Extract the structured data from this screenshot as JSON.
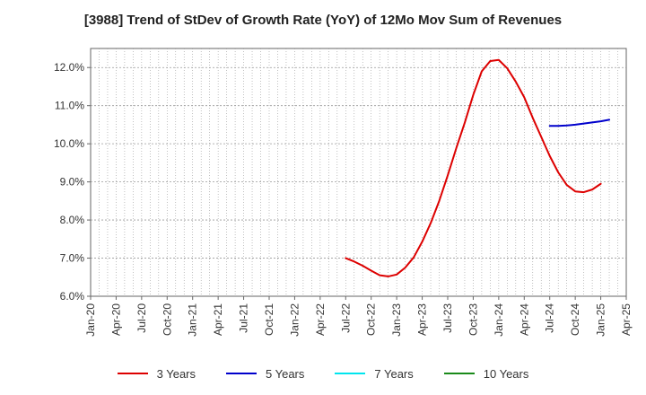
{
  "chart_data": {
    "type": "line",
    "title": "[3988]  Trend of StDev of Growth Rate (YoY) of 12Mo Mov Sum of Revenues",
    "xlabel": "",
    "ylabel": "",
    "ylim": [
      6.0,
      12.5
    ],
    "yticks": [
      6.0,
      7.0,
      8.0,
      9.0,
      10.0,
      11.0,
      12.0
    ],
    "ytick_labels": [
      "6.0%",
      "7.0%",
      "8.0%",
      "9.0%",
      "10.0%",
      "11.0%",
      "12.0%"
    ],
    "x_range_months": [
      0,
      63
    ],
    "xticks": [
      0,
      3,
      6,
      9,
      12,
      15,
      18,
      21,
      24,
      27,
      30,
      33,
      36,
      39,
      42,
      45,
      48,
      51,
      54,
      57,
      60,
      63
    ],
    "xtick_labels": [
      "Jan-20",
      "Apr-20",
      "Jul-20",
      "Oct-20",
      "Jan-21",
      "Apr-21",
      "Jul-21",
      "Oct-21",
      "Jan-22",
      "Apr-22",
      "Jul-22",
      "Oct-22",
      "Jan-23",
      "Apr-23",
      "Jul-23",
      "Oct-23",
      "Jan-24",
      "Apr-24",
      "Jul-24",
      "Oct-24",
      "Jan-25",
      "Apr-25"
    ],
    "grid": true,
    "legend_position": "bottom",
    "series": [
      {
        "name": "3 Years",
        "color": "#dd0000",
        "x": [
          30,
          31,
          32,
          33,
          34,
          35,
          36,
          37,
          38,
          39,
          40,
          41,
          42,
          43,
          44,
          45,
          46,
          47,
          48,
          49,
          50,
          51,
          52,
          53,
          54,
          55,
          56,
          57,
          58,
          59,
          60
        ],
        "values": [
          7.0,
          6.91,
          6.8,
          6.67,
          6.55,
          6.52,
          6.57,
          6.75,
          7.02,
          7.43,
          7.92,
          8.5,
          9.17,
          9.88,
          10.55,
          11.28,
          11.9,
          12.17,
          12.2,
          11.98,
          11.63,
          11.22,
          10.68,
          10.18,
          9.68,
          9.25,
          8.92,
          8.75,
          8.73,
          8.8,
          8.95
        ]
      },
      {
        "name": "5 Years",
        "color": "#0000cc",
        "x": [
          54,
          55,
          56,
          57,
          58,
          59,
          60,
          61
        ],
        "values": [
          10.47,
          10.47,
          10.48,
          10.5,
          10.53,
          10.56,
          10.59,
          10.63
        ]
      },
      {
        "name": "7 Years",
        "color": "#00e5ee",
        "x": [],
        "values": []
      },
      {
        "name": "10 Years",
        "color": "#1a8a1a",
        "x": [],
        "values": []
      }
    ]
  }
}
